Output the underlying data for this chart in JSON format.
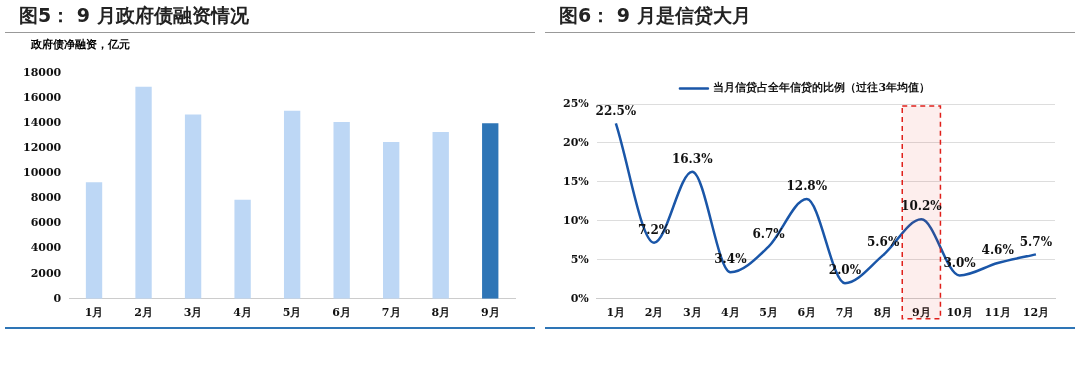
{
  "chart_data": [
    {
      "type": "bar",
      "title": "图5：  9 月政府债融资情况",
      "ylabel": "政府债净融资，亿元",
      "categories": [
        "1月",
        "2月",
        "3月",
        "4月",
        "5月",
        "6月",
        "7月",
        "8月",
        "9月"
      ],
      "series": [
        {
          "values": [
            9300,
            16900,
            14700,
            7900,
            15000,
            14100,
            12500,
            13300,
            14000
          ]
        }
      ],
      "colors": [
        "#bdd7f5",
        "#bdd7f5",
        "#bdd7f5",
        "#bdd7f5",
        "#bdd7f5",
        "#bdd7f5",
        "#bdd7f5",
        "#bdd7f5",
        "#2e75b6"
      ],
      "ylim": [
        0,
        18000
      ],
      "yticks": [
        0,
        2000,
        4000,
        6000,
        8000,
        10000,
        12000,
        14000,
        16000,
        18000
      ],
      "grid": false,
      "legend": false
    },
    {
      "type": "line",
      "title": "图6：  9 月是信贷大月",
      "categories": [
        "1月",
        "2月",
        "3月",
        "4月",
        "5月",
        "6月",
        "7月",
        "8月",
        "9月",
        "10月",
        "11月",
        "12月"
      ],
      "series": [
        {
          "name": "当月信贷占全年信贷的比例（过往3年均值）",
          "color": "#1a56a8",
          "values": [
            22.5,
            7.2,
            16.3,
            3.4,
            6.7,
            12.8,
            2.0,
            5.6,
            10.2,
            3.0,
            4.6,
            5.7
          ],
          "value_labels": [
            "22.5%",
            "7.2%",
            "16.3%",
            "3.4%",
            "6.7%",
            "12.8%",
            "2.0%",
            "5.6%",
            "10.2%",
            "3.0%",
            "4.6%",
            "5.7%"
          ]
        }
      ],
      "ylim": [
        0,
        25
      ],
      "yticks": [
        {
          "value": 0,
          "label": "0%"
        },
        {
          "value": 5,
          "label": "5%"
        },
        {
          "value": 10,
          "label": "10%"
        },
        {
          "value": 15,
          "label": "15%"
        },
        {
          "value": 20,
          "label": "20%"
        },
        {
          "value": 25,
          "label": "25%"
        }
      ],
      "grid": "y",
      "legend": "top",
      "marker": "none",
      "line_style": "solid",
      "bands": [
        {
          "axis": "x",
          "from": "9月",
          "to": "9月",
          "color": "#e0201b"
        }
      ]
    }
  ]
}
